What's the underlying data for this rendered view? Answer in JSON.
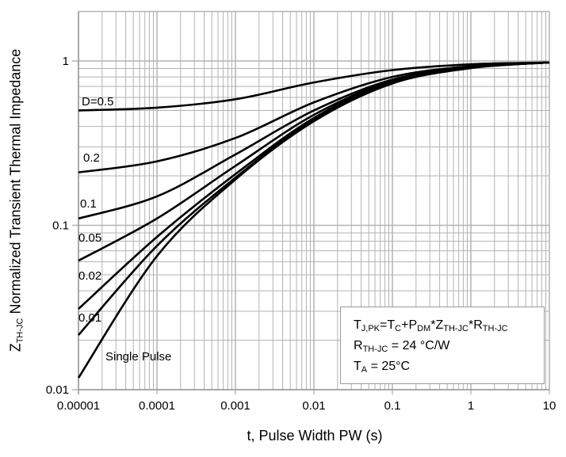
{
  "chart_data": {
    "type": "line",
    "xlabel": "t, Pulse Width PW (s)",
    "ylabel": {
      "main": "Z",
      "sub": "TH-JC",
      "rest": " Normalized Transient Thermal Impedance"
    },
    "xscale": "log",
    "yscale": "log",
    "xlim": [
      1e-05,
      10
    ],
    "ylim": [
      0.01,
      2
    ],
    "grid": true,
    "x_ticks": [
      "0.00001",
      "0.0001",
      "0.001",
      "0.01",
      "0.1",
      "1",
      "10"
    ],
    "y_ticks": [
      "0.01",
      "0.1",
      "1"
    ],
    "x": [
      1e-05,
      0.0001,
      0.001,
      0.01,
      0.1,
      1,
      10
    ],
    "series": [
      {
        "name": "D=0.5",
        "values": [
          0.5,
          0.52,
          0.585,
          0.74,
          0.88,
          0.955,
          0.98
        ]
      },
      {
        "name": "0.2",
        "values": [
          0.21,
          0.245,
          0.34,
          0.56,
          0.8,
          0.93,
          0.98
        ]
      },
      {
        "name": "0.1",
        "values": [
          0.11,
          0.15,
          0.27,
          0.5,
          0.77,
          0.92,
          0.98
        ]
      },
      {
        "name": "0.05",
        "values": [
          0.061,
          0.11,
          0.23,
          0.47,
          0.76,
          0.915,
          0.98
        ]
      },
      {
        "name": "0.02",
        "values": [
          0.031,
          0.085,
          0.205,
          0.45,
          0.75,
          0.91,
          0.98
        ]
      },
      {
        "name": "0.01",
        "values": [
          0.0215,
          0.075,
          0.195,
          0.44,
          0.74,
          0.91,
          0.98
        ]
      },
      {
        "name": "Single Pulse",
        "values": [
          0.0118,
          0.065,
          0.19,
          0.43,
          0.73,
          0.905,
          0.98
        ]
      }
    ],
    "line_color": "#000000",
    "grid_color": "#b3b3b3",
    "annotation": {
      "line1": {
        "a": "T",
        "a_sub": "J,PK",
        "b": "=T",
        "b_sub": "C",
        "c": "+P",
        "c_sub": "DM",
        "d": "*Z",
        "d_sub": "TH-JC",
        "e": "*R",
        "e_sub": "TH-JC"
      },
      "line2": {
        "a": "R",
        "a_sub": "TH-JC",
        "b": " = 24 °C/W"
      },
      "line3": {
        "a": "T",
        "a_sub": "A",
        "b": " = 25°C"
      }
    }
  }
}
